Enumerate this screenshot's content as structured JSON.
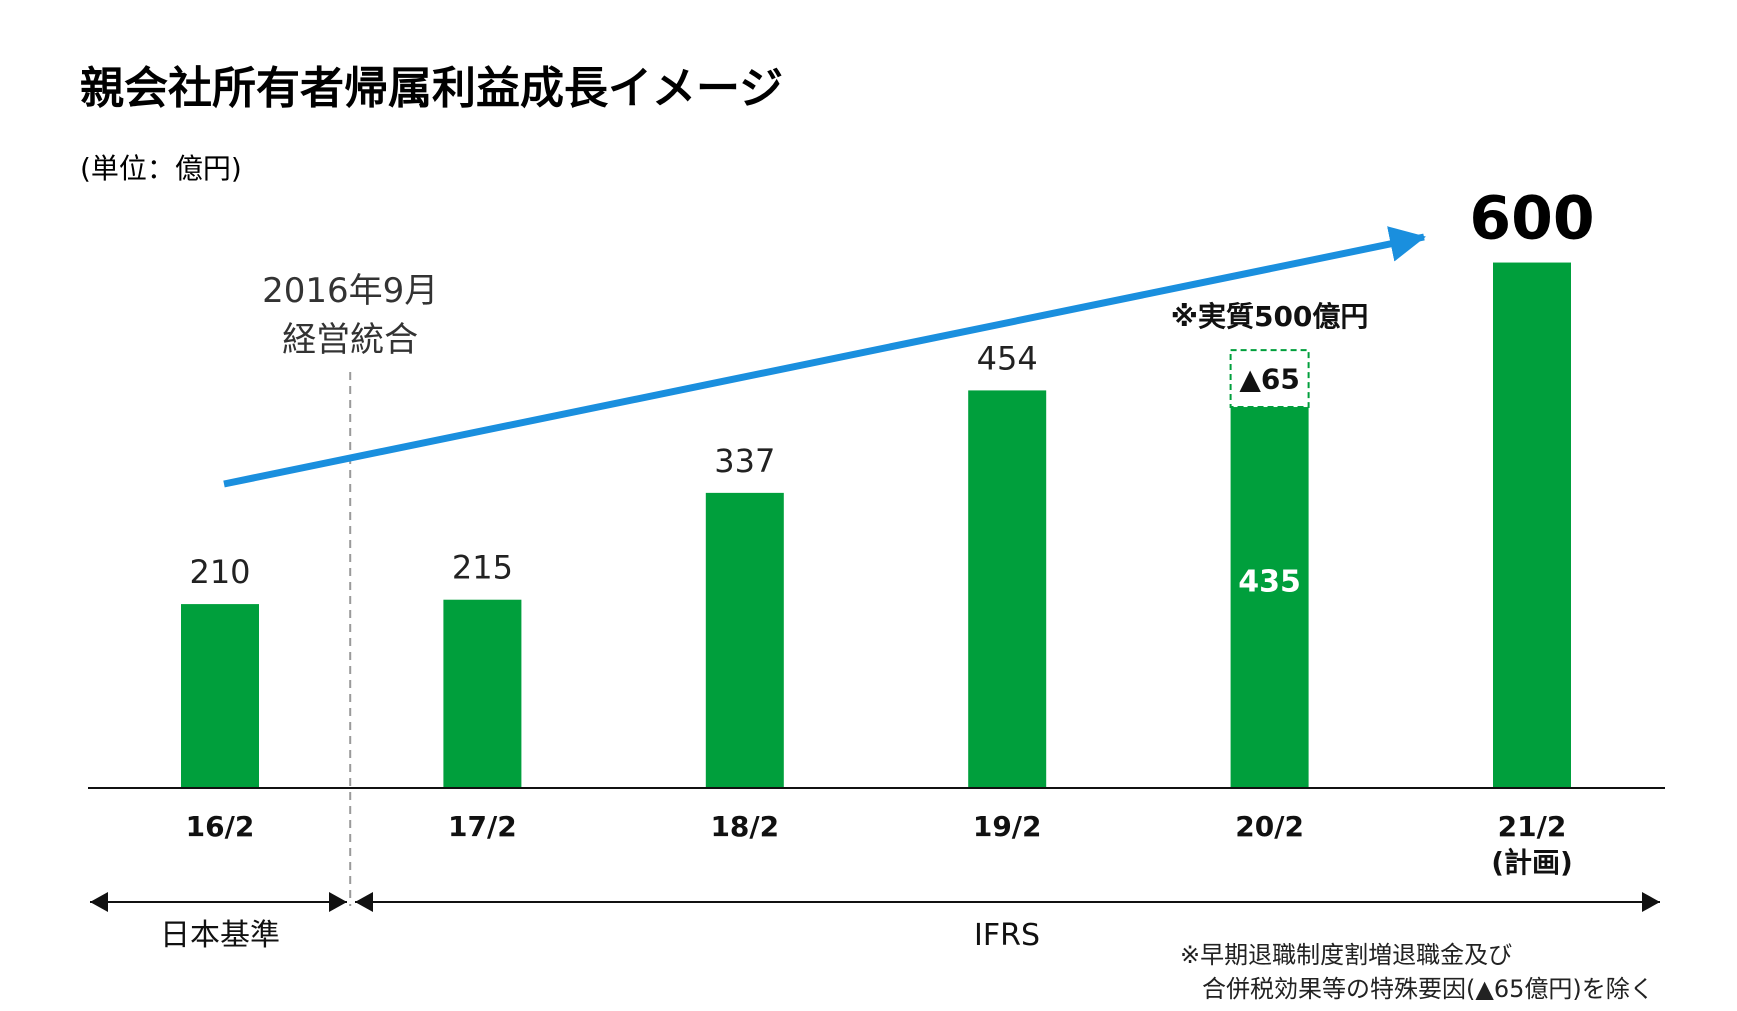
{
  "chart_data": {
    "type": "bar",
    "title": "親会社所有者帰属利益成長イメージ",
    "unit_label": "(単位：億円)",
    "categories": [
      "16/2",
      "17/2",
      "18/2",
      "19/2",
      "20/2",
      "21/2"
    ],
    "category_sub_labels": [
      "",
      "",
      "",
      "",
      "",
      "(計画)"
    ],
    "series": [
      {
        "values": [
          210,
          215,
          337,
          454,
          435,
          600
        ],
        "color": "#009f3c"
      }
    ],
    "value_labels": [
      "210",
      "215",
      "337",
      "454",
      "435",
      "600"
    ],
    "inside_label_index": 4,
    "emphasized_label_index": 5,
    "adjustment": {
      "category": "20/2",
      "value": 65,
      "label": "▲65",
      "annotation": "※実質500億円",
      "style": "dashed green outline"
    },
    "ylim": [
      0,
      660
    ],
    "grid": false,
    "trend_arrow": {
      "color": "#1a8fde",
      "from_category": "16/2",
      "to_category": "21/2"
    },
    "divider": {
      "between_categories": [
        "16/2",
        "17/2"
      ],
      "label_lines": [
        "2016年9月",
        "経営統合"
      ],
      "style": "dashed gray"
    },
    "periods": [
      {
        "label": "日本基準",
        "categories": [
          "16/2"
        ]
      },
      {
        "label": "IFRS",
        "categories": [
          "17/2",
          "18/2",
          "19/2",
          "20/2",
          "21/2"
        ]
      }
    ],
    "footnote": [
      "※早期退職制度割増退職金及び",
      "合併税効果等の特殊要因(▲65億円)を除く"
    ]
  }
}
